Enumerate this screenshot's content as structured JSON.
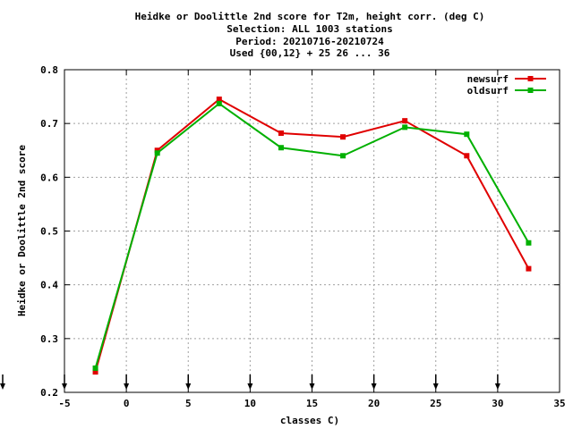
{
  "chart_data": {
    "type": "line",
    "title_lines": [
      "Heidke or Doolittle 2nd score  for T2m, height corr. (deg C)",
      "Selection: ALL   1003 stations",
      "Period: 20210716-20210724",
      "Used {00,12} + 25 26 ... 36"
    ],
    "xlabel": "classes C)",
    "ylabel": "Heidke or Doolittle 2nd score",
    "xlim": [
      -5,
      35
    ],
    "ylim": [
      0.2,
      0.8
    ],
    "xticks": [
      -5,
      0,
      5,
      10,
      15,
      20,
      25,
      30,
      35
    ],
    "yticks": [
      0.2,
      0.3,
      0.4,
      0.5,
      0.6,
      0.7,
      0.8
    ],
    "xtick_labels": [
      "-5",
      "0",
      "5",
      "10",
      "15",
      "20",
      "25",
      "30",
      "35"
    ],
    "ytick_labels": [
      "0.2",
      "0.3",
      "0.4",
      "0.5",
      "0.6",
      "0.7",
      "0.8"
    ],
    "grid": true,
    "legend_position": "top-right",
    "arrow_markers_x": [
      -5,
      0,
      5,
      10,
      15,
      20,
      25,
      30
    ],
    "x": [
      -2.5,
      2.5,
      7.5,
      12.5,
      17.5,
      22.5,
      27.5,
      32.5
    ],
    "series": [
      {
        "name": "newsurf",
        "color": "#e00000",
        "values": [
          0.238,
          0.65,
          0.745,
          0.682,
          0.675,
          0.705,
          0.64,
          0.43
        ]
      },
      {
        "name": "oldsurf",
        "color": "#00b000",
        "values": [
          0.245,
          0.645,
          0.737,
          0.655,
          0.64,
          0.693,
          0.68,
          0.478
        ]
      }
    ]
  }
}
